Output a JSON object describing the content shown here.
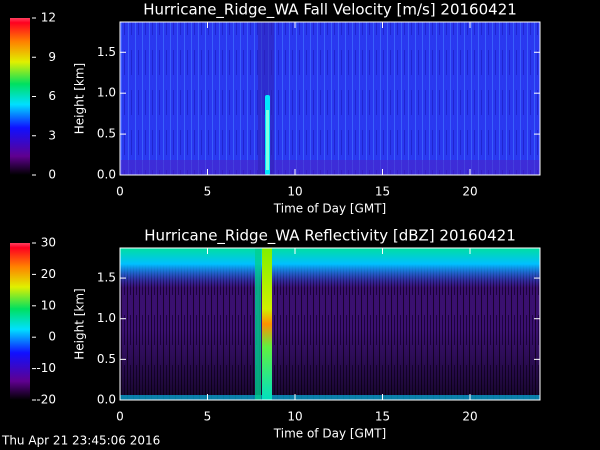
{
  "chart_data": [
    {
      "type": "heatmap",
      "title": "Hurricane_Ridge_WA Fall Velocity [m/s] 20160421",
      "xlabel": "Time of Day [GMT]",
      "ylabel": "Height [km]",
      "xlim": [
        0,
        24
      ],
      "xticks": [
        0,
        5,
        10,
        15,
        20
      ],
      "ylim": [
        0,
        1.87
      ],
      "yticks": [
        {
          "value": 0,
          "label": "0.0"
        },
        {
          "value": 0.5,
          "label": "0.5"
        },
        {
          "value": 1,
          "label": "1.0"
        },
        {
          "value": 1.5,
          "label": "1.5"
        }
      ],
      "colorbar_lim": [
        0,
        12
      ],
      "colorbar_ticks": [
        0,
        3,
        6,
        9,
        12
      ]
    },
    {
      "type": "heatmap",
      "title": "Hurricane_Ridge_WA Reflectivity [dBZ] 20160421",
      "xlabel": "Time of Day [GMT]",
      "ylabel": "Height [km]",
      "xlim": [
        0,
        24
      ],
      "xticks": [
        0,
        5,
        10,
        15,
        20
      ],
      "ylim": [
        0,
        1.87
      ],
      "yticks": [
        {
          "value": 0,
          "label": "0.0"
        },
        {
          "value": 0.5,
          "label": "0.5"
        },
        {
          "value": 1,
          "label": "1.0"
        },
        {
          "value": 1.5,
          "label": "1.5"
        }
      ],
      "colorbar_lim": [
        -20,
        30
      ],
      "colorbar_ticks": [
        -20,
        -10,
        0,
        10,
        20,
        30
      ]
    }
  ],
  "footer": "Thu Apr 21 23:45:06 2016"
}
